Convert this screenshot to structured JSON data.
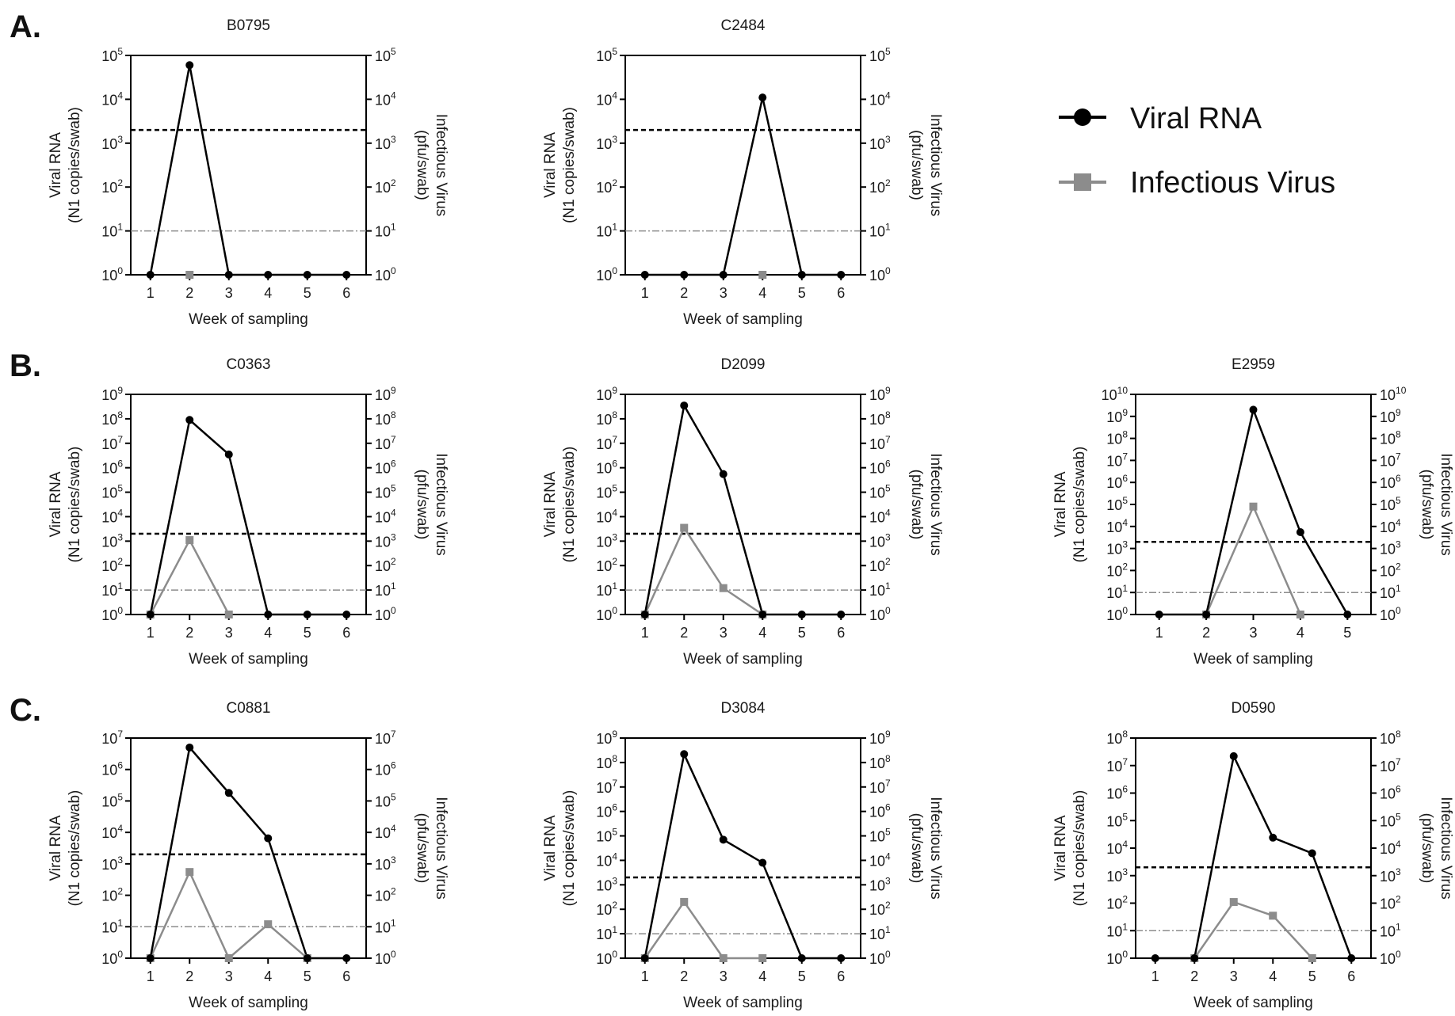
{
  "legend": {
    "rna_label": "Viral RNA",
    "inf_label": "Infectious Virus"
  },
  "colors": {
    "rna": "#000000",
    "inf": "#8c8c8c",
    "threshold": "#000000",
    "lod": "#8c8c8c"
  },
  "panel_labels": [
    "A.",
    "B.",
    "C."
  ],
  "chart_data": [
    {
      "type": "line",
      "panel": "A.",
      "title": "B0795",
      "xlabel": "Week of sampling",
      "ylabel_left": [
        "Viral RNA",
        "(N1 copies/swab)"
      ],
      "ylabel_right": [
        "Infectious Virus",
        "(pfu/swab)"
      ],
      "x": [
        1,
        2,
        3,
        4,
        5,
        6
      ],
      "xlim": [
        0.5,
        6.5
      ],
      "y_scale": "log10",
      "ylim_exp": [
        0,
        5
      ],
      "threshold": 2000,
      "lod": 10,
      "series": [
        {
          "name": "Viral RNA",
          "x": [
            1,
            2,
            3,
            4,
            5,
            6
          ],
          "values": [
            1,
            60000,
            1,
            1,
            1,
            1
          ]
        },
        {
          "name": "Infectious Virus",
          "x": [
            2
          ],
          "values": [
            1
          ]
        }
      ]
    },
    {
      "type": "line",
      "panel": "A.",
      "title": "C2484",
      "xlabel": "Week of sampling",
      "ylabel_left": [
        "Viral RNA",
        "(N1 copies/swab)"
      ],
      "ylabel_right": [
        "Infectious Virus",
        "(pfu/swab)"
      ],
      "x": [
        1,
        2,
        3,
        4,
        5,
        6
      ],
      "xlim": [
        0.5,
        6.5
      ],
      "y_scale": "log10",
      "ylim_exp": [
        0,
        5
      ],
      "threshold": 2000,
      "lod": 10,
      "series": [
        {
          "name": "Viral RNA",
          "x": [
            1,
            2,
            3,
            4,
            5,
            6
          ],
          "values": [
            1,
            1,
            1,
            11000,
            1,
            1
          ]
        },
        {
          "name": "Infectious Virus",
          "x": [
            4
          ],
          "values": [
            1
          ]
        }
      ]
    },
    {
      "type": "line",
      "panel": "B.",
      "title": "C0363",
      "xlabel": "Week of sampling",
      "ylabel_left": [
        "Viral RNA",
        "(N1 copies/swab)"
      ],
      "ylabel_right": [
        "Infectious Virus",
        "(pfu/swab)"
      ],
      "x": [
        1,
        2,
        3,
        4,
        5,
        6
      ],
      "xlim": [
        0.5,
        6.5
      ],
      "y_scale": "log10",
      "ylim_exp": [
        0,
        9
      ],
      "threshold": 2000,
      "lod": 10,
      "series": [
        {
          "name": "Viral RNA",
          "x": [
            1,
            2,
            3,
            4,
            5,
            6
          ],
          "values": [
            1,
            90000000,
            3500000,
            1,
            1,
            1
          ]
        },
        {
          "name": "Infectious Virus",
          "x": [
            1,
            2,
            3
          ],
          "values": [
            1,
            1100,
            1
          ]
        }
      ]
    },
    {
      "type": "line",
      "panel": "B.",
      "title": "D2099",
      "xlabel": "Week of sampling",
      "ylabel_left": [
        "Viral RNA",
        "(N1 copies/swab)"
      ],
      "ylabel_right": [
        "Infectious Virus",
        "(pfu/swab)"
      ],
      "x": [
        1,
        2,
        3,
        4,
        5,
        6
      ],
      "xlim": [
        0.5,
        6.5
      ],
      "y_scale": "log10",
      "ylim_exp": [
        0,
        9
      ],
      "threshold": 2000,
      "lod": 10,
      "series": [
        {
          "name": "Viral RNA",
          "x": [
            1,
            2,
            3,
            4,
            5,
            6
          ],
          "values": [
            1,
            350000000,
            550000,
            1,
            1,
            1
          ]
        },
        {
          "name": "Infectious Virus",
          "x": [
            1,
            2,
            3,
            4
          ],
          "values": [
            1,
            3500,
            12,
            1
          ]
        }
      ]
    },
    {
      "type": "line",
      "panel": "B.",
      "title": "E2959",
      "xlabel": "Week of sampling",
      "ylabel_left": [
        "Viral RNA",
        "(N1 copies/swab)"
      ],
      "ylabel_right": [
        "Infectious Virus",
        "(pfu/swab)"
      ],
      "x": [
        1,
        2,
        3,
        4,
        5
      ],
      "xlim": [
        0.5,
        5.5
      ],
      "y_scale": "log10",
      "ylim_exp": [
        0,
        10
      ],
      "threshold": 2000,
      "lod": 10,
      "series": [
        {
          "name": "Viral RNA",
          "x": [
            1,
            2,
            3,
            4,
            5
          ],
          "values": [
            1,
            1,
            2000000000,
            5500,
            1
          ]
        },
        {
          "name": "Infectious Virus",
          "x": [
            2,
            3,
            4
          ],
          "values": [
            1,
            80000,
            1
          ]
        }
      ]
    },
    {
      "type": "line",
      "panel": "C.",
      "title": "C0881",
      "xlabel": "Week of sampling",
      "ylabel_left": [
        "Viral RNA",
        "(N1 copies/swab)"
      ],
      "ylabel_right": [
        "Infectious Virus",
        "(pfu/swab)"
      ],
      "x": [
        1,
        2,
        3,
        4,
        5,
        6
      ],
      "xlim": [
        0.5,
        6.5
      ],
      "y_scale": "log10",
      "ylim_exp": [
        0,
        7
      ],
      "threshold": 2000,
      "lod": 10,
      "series": [
        {
          "name": "Viral RNA",
          "x": [
            1,
            2,
            3,
            4,
            5,
            6
          ],
          "values": [
            1,
            5000000,
            180000,
            6500,
            1,
            1
          ]
        },
        {
          "name": "Infectious Virus",
          "x": [
            1,
            2,
            3,
            4,
            5
          ],
          "values": [
            1,
            550,
            1,
            12,
            1
          ]
        }
      ]
    },
    {
      "type": "line",
      "panel": "C.",
      "title": "D3084",
      "xlabel": "Week of sampling",
      "ylabel_left": [
        "Viral RNA",
        "(N1 copies/swab)"
      ],
      "ylabel_right": [
        "Infectious Virus",
        "(pfu/swab)"
      ],
      "x": [
        1,
        2,
        3,
        4,
        5,
        6
      ],
      "xlim": [
        0.5,
        6.5
      ],
      "y_scale": "log10",
      "ylim_exp": [
        0,
        9
      ],
      "threshold": 2000,
      "lod": 10,
      "series": [
        {
          "name": "Viral RNA",
          "x": [
            1,
            2,
            3,
            4,
            5,
            6
          ],
          "values": [
            1,
            220000000,
            70000,
            8000,
            1,
            1
          ]
        },
        {
          "name": "Infectious Virus",
          "x": [
            1,
            2,
            3,
            4
          ],
          "values": [
            1,
            200,
            1,
            1
          ]
        }
      ]
    },
    {
      "type": "line",
      "panel": "C.",
      "title": "D0590",
      "xlabel": "Week of sampling",
      "ylabel_left": [
        "Viral RNA",
        "(N1 copies/swab)"
      ],
      "ylabel_right": [
        "Infectious Virus",
        "(pfu/swab)"
      ],
      "x": [
        1,
        2,
        3,
        4,
        5,
        6
      ],
      "xlim": [
        0.5,
        6.5
      ],
      "y_scale": "log10",
      "ylim_exp": [
        0,
        8
      ],
      "threshold": 2000,
      "lod": 10,
      "series": [
        {
          "name": "Viral RNA",
          "x": [
            1,
            2,
            3,
            4,
            5,
            6
          ],
          "values": [
            1,
            1,
            22000000,
            24000,
            6500,
            1
          ]
        },
        {
          "name": "Infectious Virus",
          "x": [
            2,
            3,
            4,
            5
          ],
          "values": [
            1,
            110,
            35,
            1
          ]
        }
      ]
    }
  ]
}
